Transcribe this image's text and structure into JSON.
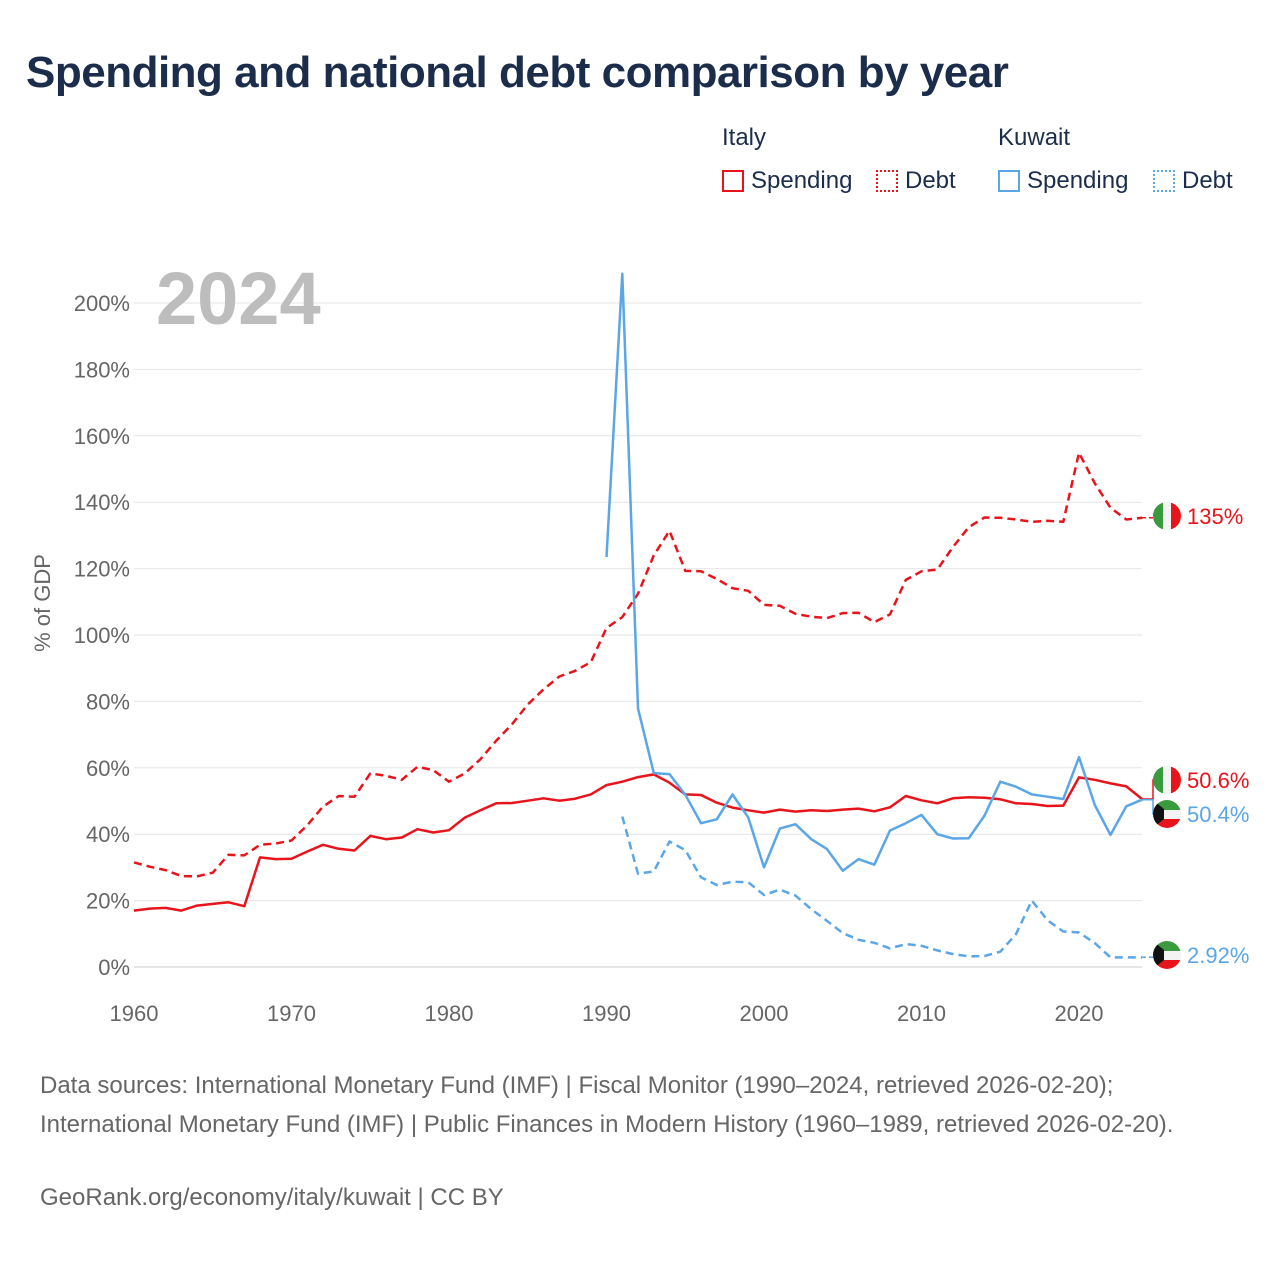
{
  "title": "Spending and national debt comparison by year",
  "legend": {
    "groups": [
      {
        "name": "Italy",
        "items": [
          {
            "label": "Spending",
            "color": "#e8141b",
            "style": "solid"
          },
          {
            "label": "Debt",
            "color": "#e8141b",
            "style": "dotted"
          }
        ]
      },
      {
        "name": "Kuwait",
        "items": [
          {
            "label": "Spending",
            "color": "#5ba6e6",
            "style": "solid"
          },
          {
            "label": "Debt",
            "color": "#5ba6e6",
            "style": "dotted"
          }
        ]
      }
    ]
  },
  "footer": {
    "sources": "Data sources: International Monetary Fund (IMF) | Fiscal Monitor (1990–2024, retrieved 2026-02-20); International Monetary Fund (IMF) | Public Finances in Modern History (1960–1989, retrieved 2026-02-20).",
    "credit": "GeoRank.org/economy/italy/kuwait | CC BY"
  },
  "chart_data": {
    "type": "line",
    "title": "Spending and national debt comparison by year",
    "year_label": "2024",
    "ylabel": "% of GDP",
    "xlabel": "",
    "xlim": [
      1960,
      2024
    ],
    "ylim": [
      0,
      200
    ],
    "x_ticks": [
      1960,
      1970,
      1980,
      1990,
      2000,
      2010,
      2020
    ],
    "y_ticks": [
      0,
      20,
      40,
      60,
      80,
      100,
      120,
      140,
      160,
      180,
      200
    ],
    "y_tick_labels": [
      "0%",
      "20%",
      "40%",
      "60%",
      "80%",
      "100%",
      "120%",
      "140%",
      "160%",
      "180%",
      "200%"
    ],
    "grid": true,
    "series": [
      {
        "name": "Italy Spending",
        "country": "Italy",
        "measure": "Spending",
        "color": "#e8141b",
        "style": "solid",
        "end_label": "50.6%",
        "start_year": 1960,
        "values": [
          17,
          17.6,
          17.8,
          17,
          18.5,
          19,
          19.5,
          18.3,
          33,
          32.5,
          32.6,
          34.8,
          36.8,
          35.6,
          35.1,
          39.5,
          38.5,
          39,
          41.5,
          40.5,
          41.2,
          45,
          47.2,
          49.3,
          49.4,
          50.1,
          50.8,
          50.1,
          50.7,
          52,
          54.8,
          55.8,
          57.2,
          58,
          55.5,
          52,
          51.8,
          49.5,
          48,
          47.2,
          46.5,
          47.4,
          46.8,
          47.2,
          47,
          47.4,
          47.7,
          46.9,
          48.1,
          51.5,
          50.2,
          49.3,
          50.8,
          51.1,
          51,
          50.5,
          49.3,
          49.1,
          48.5,
          48.6,
          57.1,
          56.4,
          55.3,
          54.4,
          50.6
        ]
      },
      {
        "name": "Italy Debt",
        "country": "Italy",
        "measure": "Debt",
        "color": "#e8141b",
        "style": "dotted",
        "end_label": "135%",
        "start_year": 1960,
        "values": [
          31.5,
          30.2,
          29.2,
          27.4,
          27.3,
          28.4,
          33.8,
          33.6,
          36.8,
          37.2,
          38.1,
          42.7,
          48.3,
          51.5,
          51.3,
          58.3,
          57.6,
          56.4,
          60.3,
          59.3,
          55.8,
          58.3,
          62.6,
          68.2,
          73.1,
          79.1,
          83.6,
          87.5,
          89.2,
          91.8,
          102.1,
          105.4,
          112.4,
          124,
          131.4,
          119.3,
          119.2,
          116.9,
          114.1,
          113.3,
          109.1,
          108.8,
          106.4,
          105.5,
          105.1,
          106.6,
          106.7,
          103.9,
          106.2,
          116.6,
          119.2,
          119.7,
          126.5,
          132.5,
          135.4,
          135.3,
          134.8,
          134.1,
          134.4,
          134.1,
          154.9,
          145.7,
          138.3,
          134.8,
          135.3
        ]
      },
      {
        "name": "Kuwait Spending",
        "country": "Kuwait",
        "measure": "Spending",
        "color": "#5ba6e6",
        "style": "solid",
        "end_label": "50.4%",
        "start_year": 1990,
        "values": [
          123.5,
          208.8,
          77.9,
          58.4,
          58.1,
          51.9,
          43.3,
          44.5,
          52,
          45,
          30,
          41.7,
          43,
          38.5,
          35.5,
          29,
          32.5,
          30.8,
          41.1,
          43.3,
          45.8,
          40,
          38.7,
          38.8,
          45.6,
          55.8,
          54.3,
          52,
          51.3,
          50.6,
          63.2,
          48.8,
          39.8,
          48.4,
          50.4
        ]
      },
      {
        "name": "Kuwait Debt",
        "country": "Kuwait",
        "measure": "Debt",
        "color": "#5ba6e6",
        "style": "dotted",
        "end_label": "2.92%",
        "start_year": 1991,
        "values": [
          45.3,
          28.1,
          28.8,
          37.8,
          35.2,
          27,
          24.7,
          25.7,
          25.5,
          21.7,
          23.3,
          21.5,
          17.4,
          13.9,
          10.2,
          8.2,
          7.3,
          5.6,
          6.9,
          6.4,
          5,
          3.9,
          3.2,
          3.3,
          4.6,
          9.9,
          20,
          14.1,
          10.7,
          10.4,
          7.2,
          2.9,
          2.9,
          2.92
        ]
      }
    ]
  }
}
